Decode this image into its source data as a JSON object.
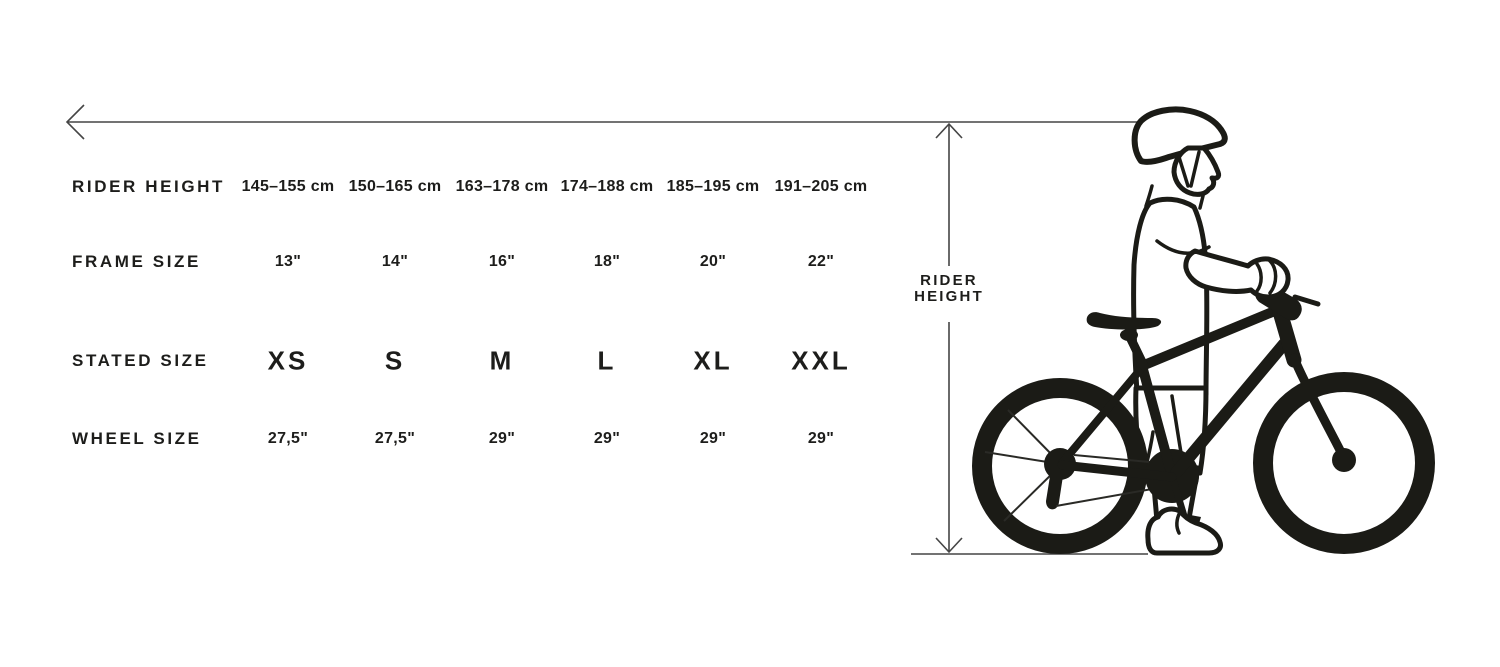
{
  "table": {
    "rows": [
      {
        "id": "rider-height",
        "label": "RIDER HEIGHT",
        "values": [
          "145–155 cm",
          "150–165 cm",
          "163–178 cm",
          "174–188 cm",
          "185–195 cm",
          "191–205 cm"
        ]
      },
      {
        "id": "frame-size",
        "label": "FRAME SIZE",
        "values": [
          "13\"",
          "14\"",
          "16\"",
          "18\"",
          "20\"",
          "22\""
        ]
      },
      {
        "id": "stated-size",
        "label": "STATED SIZE",
        "values": [
          "XS",
          "S",
          "M",
          "L",
          "XL",
          "XXL"
        ]
      },
      {
        "id": "wheel-size",
        "label": "WHEEL SIZE",
        "values": [
          "27,5\"",
          "27,5\"",
          "29\"",
          "29\"",
          "29\"",
          "29\""
        ]
      }
    ]
  },
  "measurement": {
    "vertical_label_line1": "RIDER",
    "vertical_label_line2": "HEIGHT"
  },
  "colors": {
    "text": "#1d1d1b",
    "measure_line": "#454545",
    "illustration": "#1b1b16",
    "background": "#ffffff"
  }
}
